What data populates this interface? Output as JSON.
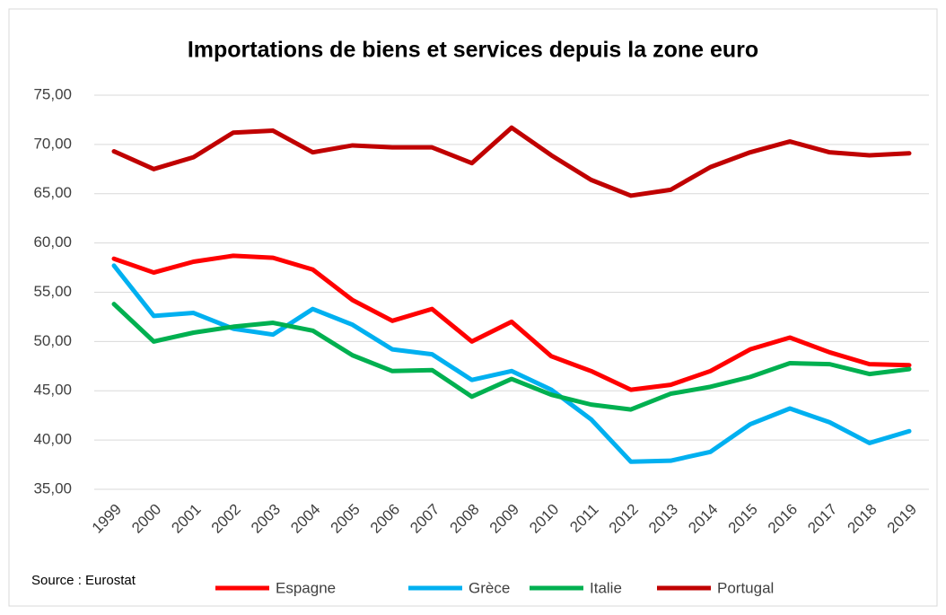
{
  "chart_data": {
    "type": "line",
    "title": "Importations de biens et services depuis la zone euro",
    "source": "Source : Eurostat",
    "categories": [
      "1999",
      "2000",
      "2001",
      "2002",
      "2003",
      "2004",
      "2005",
      "2006",
      "2007",
      "2008",
      "2009",
      "2010",
      "2011",
      "2012",
      "2013",
      "2014",
      "2015",
      "2016",
      "2017",
      "2018",
      "2019"
    ],
    "series": [
      {
        "name": "Espagne",
        "color": "#ff0000",
        "values": [
          58.4,
          57.0,
          58.1,
          58.7,
          58.5,
          57.3,
          54.2,
          52.1,
          53.3,
          50.0,
          52.0,
          48.5,
          47.0,
          45.1,
          45.6,
          47.0,
          49.2,
          50.4,
          48.9,
          47.7,
          47.6
        ]
      },
      {
        "name": "Grèce",
        "color": "#00b0f0",
        "values": [
          57.7,
          52.6,
          52.9,
          51.3,
          50.7,
          53.3,
          51.7,
          49.2,
          48.7,
          46.1,
          47.0,
          45.1,
          42.1,
          37.8,
          37.9,
          38.8,
          41.6,
          43.2,
          41.8,
          39.7,
          40.9
        ]
      },
      {
        "name": "Italie",
        "color": "#00b050",
        "values": [
          53.8,
          50.0,
          50.9,
          51.5,
          51.9,
          51.1,
          48.6,
          47.0,
          47.1,
          44.4,
          46.2,
          44.6,
          43.6,
          43.1,
          44.7,
          45.4,
          46.4,
          47.8,
          47.7,
          46.7,
          47.2
        ]
      },
      {
        "name": "Portugal",
        "color": "#c00000",
        "values": [
          69.3,
          67.5,
          68.7,
          71.2,
          71.4,
          69.2,
          69.9,
          69.7,
          69.7,
          68.1,
          71.7,
          68.9,
          66.4,
          64.8,
          65.4,
          67.7,
          69.2,
          70.3,
          69.2,
          68.9,
          69.1
        ]
      }
    ],
    "ylim": [
      35,
      75
    ],
    "yticks": [
      {
        "value": 35,
        "label": "35,00"
      },
      {
        "value": 40,
        "label": "40,00"
      },
      {
        "value": 45,
        "label": "45,00"
      },
      {
        "value": 50,
        "label": "50,00"
      },
      {
        "value": 55,
        "label": "55,00"
      },
      {
        "value": 60,
        "label": "60,00"
      },
      {
        "value": 65,
        "label": "65,00"
      },
      {
        "value": 70,
        "label": "70,00"
      },
      {
        "value": 75,
        "label": "75,00"
      }
    ],
    "grid": true
  }
}
